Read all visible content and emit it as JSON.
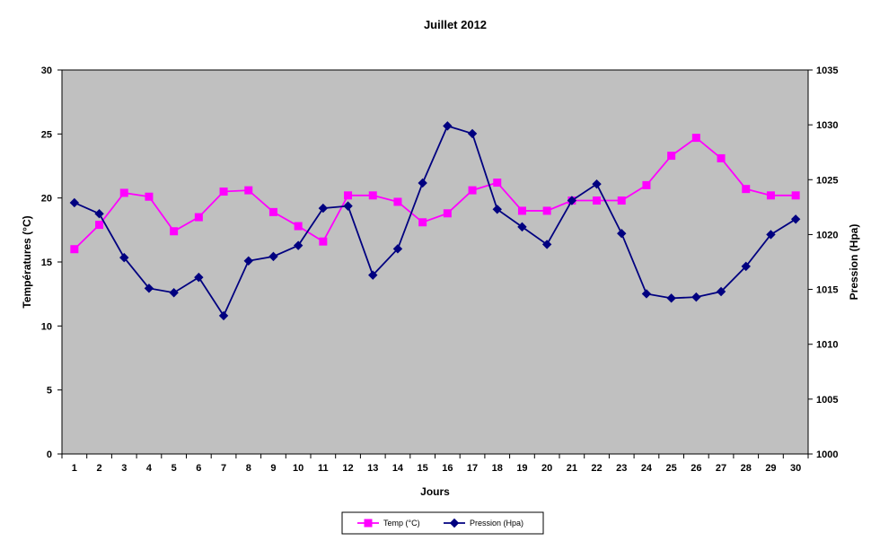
{
  "chart_data": {
    "type": "line",
    "title": "Juillet 2012",
    "xlabel": "Jours",
    "ylabel_left": "Températures (°C)",
    "ylabel_right": "Pression (Hpa)",
    "x": [
      1,
      2,
      3,
      4,
      5,
      6,
      7,
      8,
      9,
      10,
      11,
      12,
      13,
      14,
      15,
      16,
      17,
      18,
      19,
      20,
      21,
      22,
      23,
      24,
      25,
      26,
      27,
      28,
      29,
      30
    ],
    "ylim_left": [
      0,
      30
    ],
    "yticks_left": [
      0,
      5,
      10,
      15,
      20,
      25,
      30
    ],
    "ylim_right": [
      1000,
      1035
    ],
    "yticks_right": [
      1000,
      1005,
      1010,
      1015,
      1020,
      1025,
      1030,
      1035
    ],
    "series": [
      {
        "name": "Temp (°C)",
        "axis": "left",
        "color": "#ff00ff",
        "marker": "square",
        "values": [
          16.0,
          17.9,
          20.4,
          20.1,
          17.4,
          18.5,
          20.5,
          20.6,
          18.9,
          17.8,
          16.6,
          20.2,
          20.2,
          19.7,
          18.1,
          18.8,
          20.6,
          21.2,
          19.0,
          19.0,
          19.8,
          19.8,
          19.8,
          21.0,
          23.3,
          24.7,
          23.1,
          20.7,
          20.2,
          20.2
        ]
      },
      {
        "name": "Pression (Hpa)",
        "axis": "right",
        "color": "#000080",
        "marker": "diamond",
        "values": [
          1022.9,
          1021.9,
          1017.9,
          1015.1,
          1014.7,
          1016.1,
          1012.6,
          1017.6,
          1018.0,
          1019.0,
          1022.4,
          1022.6,
          1016.3,
          1018.7,
          1024.7,
          1029.9,
          1029.2,
          1022.3,
          1020.7,
          1019.1,
          1023.1,
          1024.6,
          1020.1,
          1014.6,
          1014.2,
          1014.3,
          1014.8,
          1017.1,
          1020.0,
          1021.4
        ]
      }
    ],
    "grid": false,
    "plot_background": "#c0c0c0",
    "legend_position": "bottom-center"
  }
}
